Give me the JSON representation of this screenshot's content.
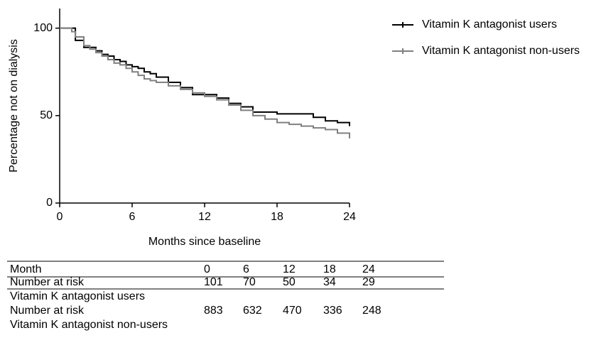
{
  "chart_data": {
    "type": "step",
    "y_label": "Percentage not on dialysis",
    "x_label": "Months since baseline",
    "xlim": [
      0,
      24
    ],
    "xticks": [
      0,
      6,
      12,
      18,
      24
    ],
    "ylim": [
      0,
      110
    ],
    "yticks": [
      0,
      50,
      100
    ],
    "legend": "top-right",
    "series": [
      {
        "name": "Vitamin K antagonist users",
        "color": "#000000",
        "x": [
          0,
          1,
          1.3,
          2,
          2.5,
          3,
          3.5,
          4,
          4.5,
          5,
          5.5,
          6,
          6.5,
          7,
          7.5,
          8,
          9,
          10,
          11,
          12,
          13,
          14,
          15,
          16,
          17,
          18,
          19,
          20,
          21,
          22,
          23,
          24
        ],
        "values": [
          100,
          100,
          93,
          89,
          89,
          87,
          85,
          84,
          82,
          81,
          79,
          78,
          77,
          75,
          74,
          72,
          69,
          66,
          62,
          62,
          60,
          57,
          55,
          52,
          52,
          51,
          51,
          51,
          49,
          47,
          46,
          44
        ]
      },
      {
        "name": "Vitamin K antagonist non-users",
        "color": "#808080",
        "x": [
          0,
          1,
          1.3,
          2,
          2.5,
          3,
          3.5,
          4,
          4.5,
          5,
          5.5,
          6,
          6.5,
          7,
          7.5,
          8,
          9,
          10,
          11,
          12,
          13,
          14,
          15,
          16,
          17,
          18,
          19,
          20,
          21,
          22,
          23,
          24
        ],
        "values": [
          100,
          98,
          95,
          90,
          88,
          86,
          84,
          82,
          80,
          79,
          77,
          75,
          73,
          71,
          70,
          69,
          67,
          65,
          63,
          61,
          59,
          56,
          53,
          50,
          48,
          46,
          45,
          44,
          43,
          42,
          40,
          37
        ]
      }
    ]
  },
  "table": {
    "header": [
      "Month",
      0,
      6,
      12,
      18,
      24
    ],
    "rows": [
      {
        "label": "Number at risk",
        "group": "Vitamin K antagonist users",
        "values": [
          101,
          70,
          50,
          34,
          29
        ]
      },
      {
        "label": "Number at risk",
        "group": "Vitamin K antagonist non-users",
        "values": [
          883,
          632,
          470,
          336,
          248
        ]
      }
    ]
  }
}
